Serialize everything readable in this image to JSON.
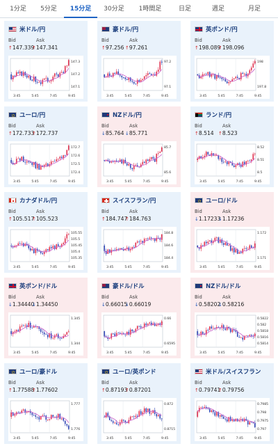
{
  "tabs": [
    {
      "label": "1分足",
      "active": false
    },
    {
      "label": "5分足",
      "active": false
    },
    {
      "label": "15分足",
      "active": true
    },
    {
      "label": "30分足",
      "active": false
    },
    {
      "label": "1時間足",
      "active": false
    },
    {
      "label": "日足",
      "active": false
    },
    {
      "label": "週足",
      "active": false
    },
    {
      "label": "月足",
      "active": false
    }
  ],
  "colors": {
    "accent": "#1e63c4",
    "up": "#d12b2b",
    "down": "#1b55b8",
    "card_up_bg": "#e9f2fb",
    "card_down_bg": "#fbeaec",
    "candle_up": "#e0304d",
    "candle_down": "#3247b5",
    "ma": "#c65bc8"
  },
  "labels": {
    "bid": "Bid",
    "ask": "Ask"
  },
  "cards": [
    {
      "pair": "米ドル/円",
      "flag": "us-flag",
      "dir": "up",
      "bid": "147.339",
      "ask": "147.341",
      "y_ticks": [
        "147.3",
        "147.2",
        "147.1"
      ],
      "x_ticks": [
        "3:45",
        "5:45",
        "7:45",
        "9:45"
      ],
      "seed": 3,
      "trend": "up-end"
    },
    {
      "pair": "豪ドル/円",
      "flag": "au-flag",
      "dir": "up",
      "bid": "97.256",
      "ask": "97.261",
      "y_ticks": [
        "97.2",
        "97.1"
      ],
      "x_ticks": [
        "3:45",
        "5:45",
        "7:45",
        "9:45"
      ],
      "seed": 7,
      "trend": "up-end"
    },
    {
      "pair": "英ポンド/円",
      "flag": "uk-flag",
      "dir": "up",
      "bid": "198.089",
      "ask": "198.096",
      "y_ticks": [
        "198",
        "197.8"
      ],
      "x_ticks": [
        "3:45",
        "5:45",
        "7:45",
        "9:45"
      ],
      "seed": 11,
      "trend": "up-end"
    },
    {
      "pair": "ユーロ/円",
      "flag": "eu-flag",
      "dir": "up",
      "bid": "172.733",
      "ask": "172.737",
      "y_ticks": [
        "172.7",
        "172.6",
        "172.5",
        "172.4"
      ],
      "x_ticks": [
        "3:45",
        "5:45",
        "7:45",
        "9:45"
      ],
      "seed": 13,
      "trend": "up-end"
    },
    {
      "pair": "NZドル/円",
      "flag": "nz-flag",
      "dir": "down",
      "bid": "85.764",
      "ask": "85.771",
      "y_ticks": [
        "85.7",
        "85.6"
      ],
      "x_ticks": [
        "3:45",
        "5:45",
        "7:45",
        "9:45"
      ],
      "seed": 17,
      "trend": "up-end"
    },
    {
      "pair": "ランド/円",
      "flag": "za-flag",
      "dir": "up",
      "bid": "8.514",
      "ask": "8.523",
      "y_ticks": [
        "8.52",
        "8.51",
        "8.5"
      ],
      "x_ticks": [
        "3:45",
        "5:45",
        "7:45",
        "9:45"
      ],
      "seed": 19,
      "trend": "wave"
    },
    {
      "pair": "カナダドル/円",
      "flag": "ca-flag",
      "dir": "up",
      "bid": "105.517",
      "ask": "105.523",
      "y_ticks": [
        "105.55",
        "105.5",
        "105.45",
        "105.4",
        "105.35"
      ],
      "x_ticks": [
        "3:45",
        "5:45",
        "7:45",
        "9:45"
      ],
      "seed": 23,
      "trend": "up-end"
    },
    {
      "pair": "スイスフラン/円",
      "flag": "ch-flag",
      "dir": "up",
      "bid": "184.747",
      "ask": "184.763",
      "y_ticks": [
        "184.8",
        "184.6",
        "184.4"
      ],
      "x_ticks": [
        "3:45",
        "5:45",
        "7:45",
        "9:45"
      ],
      "seed": 29,
      "trend": "rise"
    },
    {
      "pair": "ユーロ/ドル",
      "flag": "eu-flag",
      "dir": "down",
      "bid": "1.17233",
      "ask": "1.17236",
      "y_ticks": [
        "1.172",
        "1.171"
      ],
      "x_ticks": [
        "3:45",
        "5:45",
        "7:45",
        "9:45"
      ],
      "seed": 31,
      "trend": "wave"
    },
    {
      "pair": "英ポンド/ドル",
      "flag": "uk-flag",
      "dir": "down",
      "bid": "1.34440",
      "ask": "1.34450",
      "y_ticks": [
        "1.345",
        "1.344"
      ],
      "x_ticks": [
        "3:45",
        "5:45",
        "7:45",
        "9:45"
      ],
      "seed": 37,
      "trend": "wave"
    },
    {
      "pair": "豪ドル/ドル",
      "flag": "au-flag",
      "dir": "down",
      "bid": "0.66015",
      "ask": "0.66019",
      "y_ticks": [
        "0.66",
        "0.6595"
      ],
      "x_ticks": [
        "3:45",
        "5:45",
        "7:45",
        "9:45"
      ],
      "seed": 41,
      "trend": "rise"
    },
    {
      "pair": "NZドル/ドル",
      "flag": "nz-flag",
      "dir": "down",
      "bid": "0.58202",
      "ask": "0.58216",
      "y_ticks": [
        "0.5822",
        "0.582",
        "0.5818",
        "0.5816",
        "0.5814"
      ],
      "x_ticks": [
        "3:45",
        "5:45",
        "7:45",
        "9:45"
      ],
      "seed": 43,
      "trend": "wave"
    },
    {
      "pair": "ユーロ/豪ドル",
      "flag": "eu-flag",
      "dir": "up",
      "bid": "1.77588",
      "ask": "1.77602",
      "y_ticks": [
        "1.777",
        "1.776"
      ],
      "x_ticks": [
        "3:45",
        "5:45",
        "7:45",
        "9:45"
      ],
      "seed": 47,
      "trend": "down-end"
    },
    {
      "pair": "ユーロ/英ポンド",
      "flag": "eu-flag",
      "dir": "up",
      "bid": "0.87193",
      "ask": "0.87201",
      "y_ticks": [
        "0.872",
        "0.8715"
      ],
      "x_ticks": [
        "3:45",
        "5:45",
        "7:45",
        "9:45"
      ],
      "seed": 53,
      "trend": "wave"
    },
    {
      "pair": "米ドル/スイスフラン",
      "flag": "us-flag",
      "dir": "up",
      "bid": "0.79741",
      "ask": "0.79756",
      "y_ticks": [
        "0.7985",
        "0.798",
        "0.7975",
        "0.797"
      ],
      "x_ticks": [
        "3:45",
        "5:45",
        "7:45",
        "9:45"
      ],
      "seed": 59,
      "trend": "fall"
    }
  ]
}
